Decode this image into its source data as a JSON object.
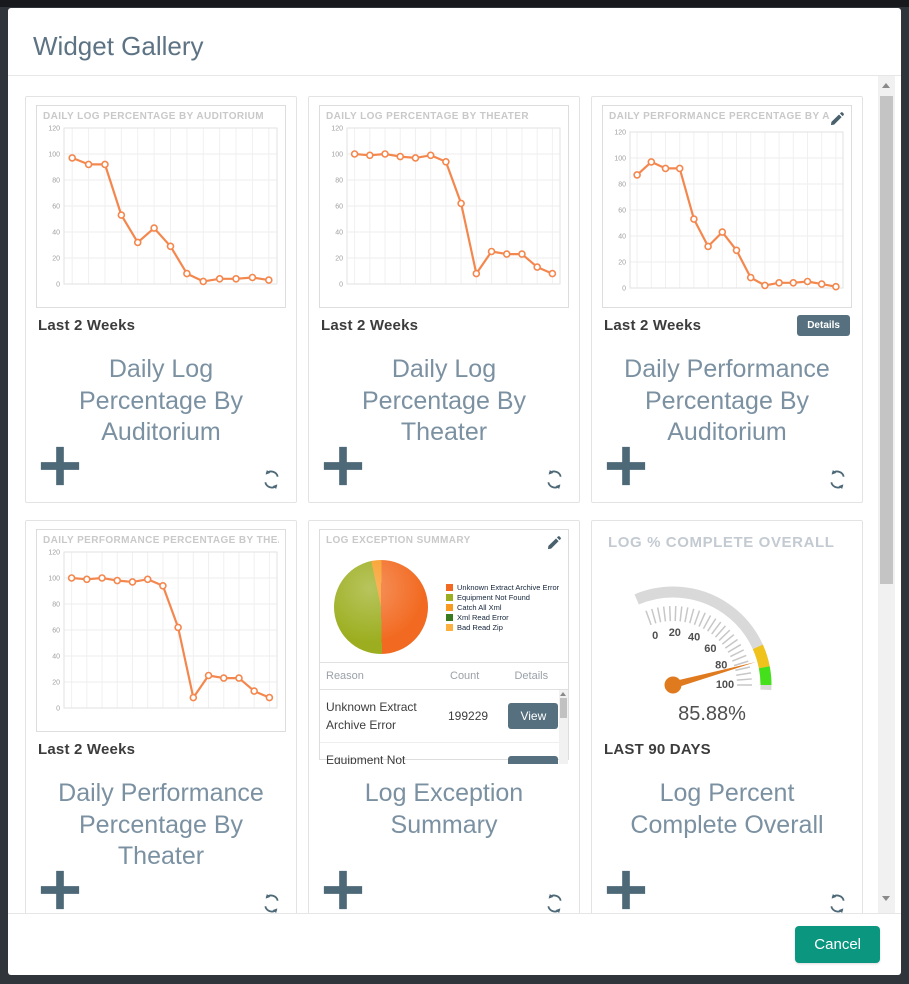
{
  "modal": {
    "title": "Widget Gallery"
  },
  "footer": {
    "cancel_label": "Cancel"
  },
  "cards": [
    {
      "header": "DAILY LOG PERCENTAGE BY AUDITORIUM",
      "period": "Last 2 Weeks",
      "title": "Daily Log Percentage By Auditorium"
    },
    {
      "header": "DAILY LOG PERCENTAGE BY THEATER",
      "period": "Last 2 Weeks",
      "title": "Daily Log Percentage By Theater"
    },
    {
      "header": "DAILY PERFORMANCE PERCENTAGE BY AUDITORIUM",
      "period": "Last 2 Weeks",
      "title": "Daily Performance Percentage By Auditorium",
      "details_label": "Details"
    },
    {
      "header": "DAILY PERFORMANCE PERCENTAGE BY THEATER",
      "period": "Last 2 Weeks",
      "title": "Daily Performance Percentage By Theater"
    },
    {
      "header": "LOG EXCEPTION SUMMARY",
      "title": "Log Exception Summary"
    },
    {
      "header": "LOG % COMPLETE OVERALL",
      "period": "LAST 90 DAYS",
      "title": "Log Percent Complete Overall"
    }
  ],
  "chart_data": [
    {
      "type": "line",
      "title": "DAILY LOG PERCENTAGE BY AUDITORIUM",
      "xlabel": "",
      "ylabel": "",
      "ylim": [
        0,
        120
      ],
      "yticks": [
        0,
        20,
        40,
        60,
        80,
        100,
        120
      ],
      "line_color": "#f4874e",
      "grid": true,
      "values": [
        97,
        92,
        92,
        53,
        32,
        43,
        29,
        8,
        2,
        4,
        4,
        5,
        3
      ]
    },
    {
      "type": "line",
      "title": "DAILY LOG PERCENTAGE BY THEATER",
      "xlabel": "",
      "ylabel": "",
      "ylim": [
        0,
        120
      ],
      "yticks": [
        0,
        20,
        40,
        60,
        80,
        100,
        120
      ],
      "line_color": "#f4874e",
      "grid": true,
      "values": [
        100,
        99,
        100,
        98,
        97,
        99,
        94,
        62,
        8,
        25,
        23,
        23,
        13,
        8
      ]
    },
    {
      "type": "line",
      "title": "DAILY PERFORMANCE PERCENTAGE BY AUDITORIUM",
      "xlabel": "",
      "ylabel": "",
      "ylim": [
        0,
        120
      ],
      "yticks": [
        0,
        20,
        40,
        60,
        80,
        100,
        120
      ],
      "line_color": "#f4874e",
      "grid": true,
      "values": [
        87,
        97,
        92,
        92,
        53,
        32,
        43,
        29,
        8,
        2,
        4,
        4,
        5,
        3,
        1
      ]
    },
    {
      "type": "line",
      "title": "DAILY PERFORMANCE PERCENTAGE BY THEATER",
      "xlabel": "",
      "ylabel": "",
      "ylim": [
        0,
        120
      ],
      "yticks": [
        0,
        20,
        40,
        60,
        80,
        100,
        120
      ],
      "line_color": "#f4874e",
      "grid": true,
      "values": [
        100,
        99,
        100,
        98,
        97,
        99,
        94,
        62,
        8,
        25,
        23,
        23,
        13,
        8
      ]
    },
    {
      "type": "pie",
      "title": "LOG EXCEPTION SUMMARY",
      "start_deg": -12,
      "render_order": [
        2,
        0,
        1
      ],
      "slices": [
        {
          "label": "Unknown Extract Archive Error",
          "color": "#f26a21",
          "pct": 49.5
        },
        {
          "label": "Equipment Not Found",
          "color": "#9cae1f",
          "pct": 47
        },
        {
          "label": "Catch All Xml",
          "color": "#f89a1f",
          "pct": 3.5
        },
        {
          "label": "Xml Read Error",
          "color": "#3a7a1e",
          "pct": 0
        },
        {
          "label": "Bad Read Zip",
          "color": "#fbb040",
          "pct": 0
        }
      ],
      "table": {
        "headers": [
          "Reason",
          "Count",
          "Details"
        ],
        "rows": [
          {
            "reason": "Unknown Extract Archive Error",
            "count": "199229",
            "action": "View"
          },
          {
            "reason": "Equipment Not Found",
            "count": "",
            "action": "View"
          }
        ]
      }
    },
    {
      "type": "gauge",
      "title": "LOG % COMPLETE OVERALL",
      "value": 85.88,
      "display": "85.88%",
      "min": 0,
      "max": 100,
      "ticks": [
        0,
        20,
        40,
        60,
        80,
        100
      ],
      "zones": [
        {
          "from": 78,
          "to": 90,
          "color": "#efc31b"
        },
        {
          "from": 90,
          "to": 100,
          "color": "#45e01c"
        }
      ],
      "needle_color": "#df7a1f"
    }
  ]
}
